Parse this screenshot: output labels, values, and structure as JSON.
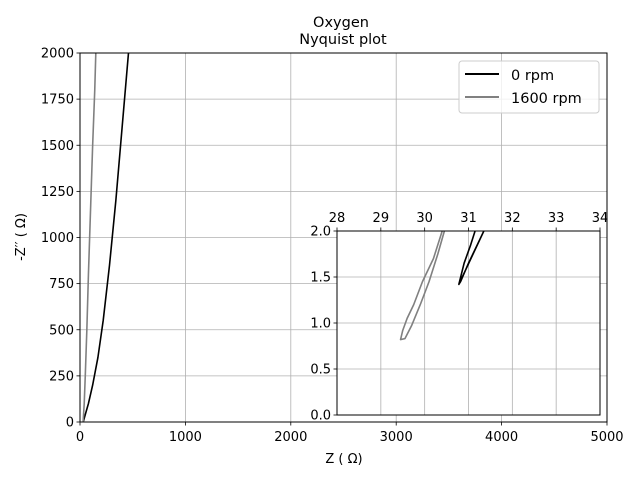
{
  "chart_data": [
    {
      "type": "line",
      "role": "main",
      "title_line1": "Oxygen",
      "title_line2": "Nyquist plot",
      "xlabel": "Z  ( Ω)",
      "ylabel": "-Z′′  ( Ω)",
      "xlim": [
        0,
        5000
      ],
      "ylim": [
        0,
        2000
      ],
      "xticks": [
        0,
        1000,
        2000,
        3000,
        4000,
        5000
      ],
      "yticks": [
        0,
        250,
        500,
        750,
        1000,
        1250,
        1500,
        1750,
        2000
      ],
      "grid": true,
      "legend_position": "top-right",
      "series": [
        {
          "name": "0 rpm",
          "color": "#000000",
          "points": [
            [
              30.8,
              1.4
            ],
            [
              50,
              40
            ],
            [
              80,
              100
            ],
            [
              120,
              200
            ],
            [
              170,
              350
            ],
            [
              220,
              550
            ],
            [
              280,
              850
            ],
            [
              340,
              1200
            ],
            [
              400,
              1600
            ],
            [
              460,
              2000
            ]
          ]
        },
        {
          "name": "1600 rpm",
          "color": "#808080",
          "points": [
            [
              29.5,
              0.8
            ],
            [
              30,
              5
            ],
            [
              40,
              100
            ],
            [
              50,
              250
            ],
            [
              65,
              500
            ],
            [
              80,
              800
            ],
            [
              100,
              1150
            ],
            [
              120,
              1500
            ],
            [
              140,
              1800
            ],
            [
              150,
              2000
            ]
          ]
        }
      ]
    },
    {
      "type": "line",
      "role": "inset",
      "xlim": [
        28,
        34
      ],
      "ylim": [
        0,
        2
      ],
      "xticks": [
        28,
        29,
        30,
        31,
        32,
        33,
        34
      ],
      "yticks": [
        0.0,
        0.5,
        1.0,
        1.5,
        2.0
      ],
      "grid": true,
      "series": [
        {
          "name": "0 rpm",
          "color": "#000000",
          "points": [
            [
              30.78,
              1.42
            ],
            [
              30.82,
              1.45
            ],
            [
              31.0,
              1.65
            ],
            [
              31.2,
              1.85
            ],
            [
              31.35,
              2.0
            ],
            [
              30.78,
              1.42
            ],
            [
              30.9,
              1.65
            ],
            [
              31.05,
              1.85
            ],
            [
              31.15,
              2.0
            ]
          ]
        },
        {
          "name": "1600 rpm",
          "color": "#808080",
          "points": [
            [
              30.45,
              2.0
            ],
            [
              30.3,
              1.75
            ],
            [
              30.1,
              1.45
            ],
            [
              29.9,
              1.2
            ],
            [
              29.7,
              0.97
            ],
            [
              29.55,
              0.83
            ],
            [
              29.45,
              0.82
            ],
            [
              29.5,
              0.92
            ],
            [
              29.6,
              1.05
            ],
            [
              29.75,
              1.2
            ],
            [
              29.95,
              1.45
            ],
            [
              30.2,
              1.7
            ],
            [
              30.4,
              2.0
            ]
          ]
        }
      ]
    }
  ]
}
